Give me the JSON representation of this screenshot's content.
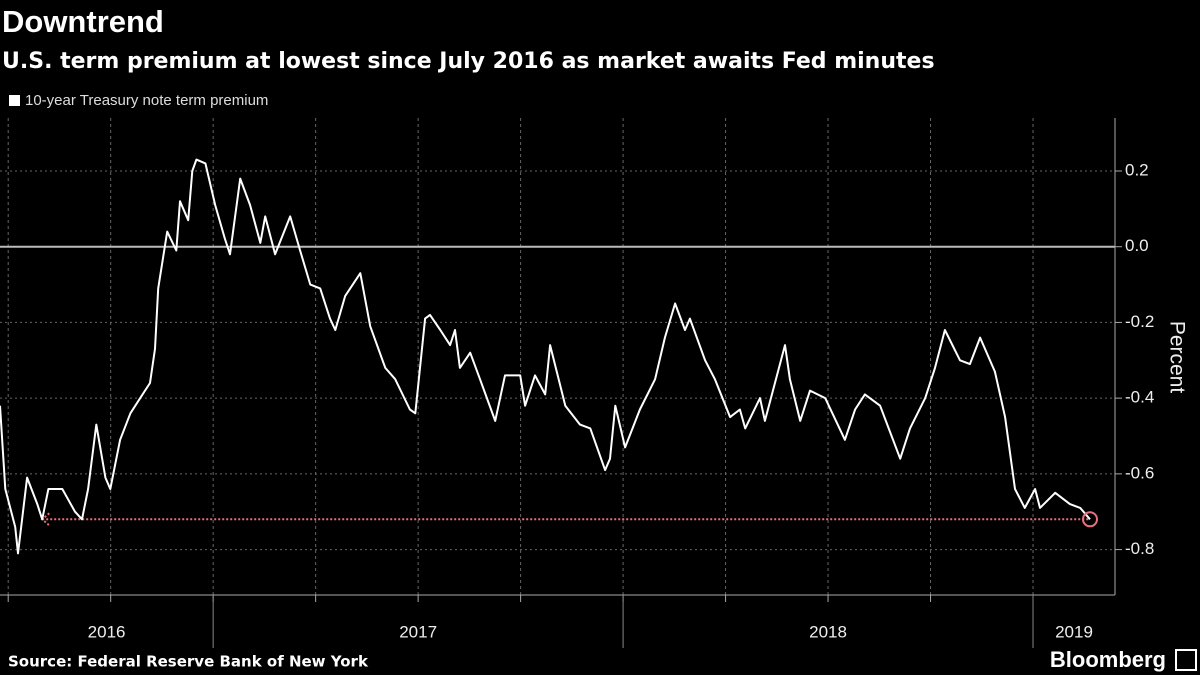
{
  "chart_data": {
    "type": "line",
    "title": "Downtrend",
    "subtitle": "U.S. term premium at lowest since July 2016 as market awaits Fed minutes",
    "y_label": "Percent",
    "source": "Source: Federal Reserve Bank of New York",
    "brand": "Bloomberg",
    "x": [
      2016.48,
      2016.493,
      2016.517,
      2016.524,
      2016.546,
      2016.571,
      2016.583,
      2016.598,
      2016.632,
      2016.663,
      2016.68,
      2016.695,
      2016.715,
      2016.737,
      2016.749,
      2016.773,
      2016.798,
      2016.822,
      2016.846,
      2016.858,
      2016.866,
      2016.888,
      2016.91,
      2016.919,
      2016.939,
      2016.949,
      2016.959,
      2016.981,
      2017.005,
      2017.029,
      2017.041,
      2017.066,
      2017.09,
      2017.115,
      2017.127,
      2017.151,
      2017.188,
      2017.212,
      2017.237,
      2017.261,
      2017.285,
      2017.298,
      2017.322,
      2017.359,
      2017.383,
      2017.42,
      2017.444,
      2017.48,
      2017.493,
      2017.517,
      2017.529,
      2017.554,
      2017.578,
      2017.59,
      2017.602,
      2017.627,
      2017.651,
      2017.688,
      2017.712,
      2017.749,
      2017.761,
      2017.785,
      2017.81,
      2017.822,
      2017.859,
      2017.895,
      2017.92,
      2017.956,
      2017.968,
      2017.981,
      2018.005,
      2018.041,
      2018.078,
      2018.102,
      2018.127,
      2018.151,
      2018.163,
      2018.2,
      2018.224,
      2018.261,
      2018.285,
      2018.298,
      2018.334,
      2018.346,
      2018.395,
      2018.407,
      2018.432,
      2018.456,
      2018.493,
      2018.541,
      2018.566,
      2018.59,
      2018.627,
      2018.676,
      2018.7,
      2018.737,
      2018.761,
      2018.785,
      2018.822,
      2018.846,
      2018.871,
      2018.907,
      2018.932,
      2018.956,
      2018.98,
      2019.005,
      2019.017,
      2019.054,
      2019.09,
      2019.115,
      2019.139
    ],
    "series": [
      {
        "name": "10-year Treasury note term premium",
        "color": "#ffffff",
        "values": [
          -0.42,
          -0.64,
          -0.74,
          -0.81,
          -0.61,
          -0.68,
          -0.72,
          -0.64,
          -0.64,
          -0.7,
          -0.72,
          -0.64,
          -0.47,
          -0.61,
          -0.64,
          -0.51,
          -0.44,
          -0.4,
          -0.36,
          -0.27,
          -0.11,
          0.04,
          -0.01,
          0.12,
          0.07,
          0.2,
          0.23,
          0.22,
          0.11,
          0.02,
          -0.02,
          0.18,
          0.11,
          0.01,
          0.08,
          -0.02,
          0.08,
          -0.01,
          -0.1,
          -0.11,
          -0.19,
          -0.22,
          -0.13,
          -0.07,
          -0.21,
          -0.32,
          -0.35,
          -0.43,
          -0.44,
          -0.19,
          -0.18,
          -0.22,
          -0.26,
          -0.22,
          -0.32,
          -0.28,
          -0.35,
          -0.46,
          -0.34,
          -0.34,
          -0.42,
          -0.34,
          -0.39,
          -0.26,
          -0.42,
          -0.47,
          -0.48,
          -0.59,
          -0.56,
          -0.42,
          -0.53,
          -0.43,
          -0.35,
          -0.24,
          -0.15,
          -0.22,
          -0.19,
          -0.3,
          -0.35,
          -0.45,
          -0.43,
          -0.48,
          -0.4,
          -0.46,
          -0.26,
          -0.35,
          -0.46,
          -0.38,
          -0.4,
          -0.51,
          -0.43,
          -0.39,
          -0.42,
          -0.56,
          -0.48,
          -0.4,
          -0.32,
          -0.22,
          -0.3,
          -0.31,
          -0.24,
          -0.33,
          -0.45,
          -0.64,
          -0.69,
          -0.64,
          -0.69,
          -0.65,
          -0.68,
          -0.69,
          -0.72
        ]
      }
    ],
    "reference_line": {
      "value": -0.72,
      "from": 2016.583,
      "color": "#e8707e"
    },
    "xlim": [
      2016.48,
      2019.2
    ],
    "xticks": [
      2016,
      2017,
      2018,
      2019
    ],
    "ylim": [
      -0.92,
      0.34
    ],
    "yticks": [
      0.2,
      {
        "value": 0,
        "label": "0.0"
      },
      -0.2,
      -0.4,
      -0.6,
      -0.8
    ],
    "grid": true,
    "zero_line": true
  }
}
